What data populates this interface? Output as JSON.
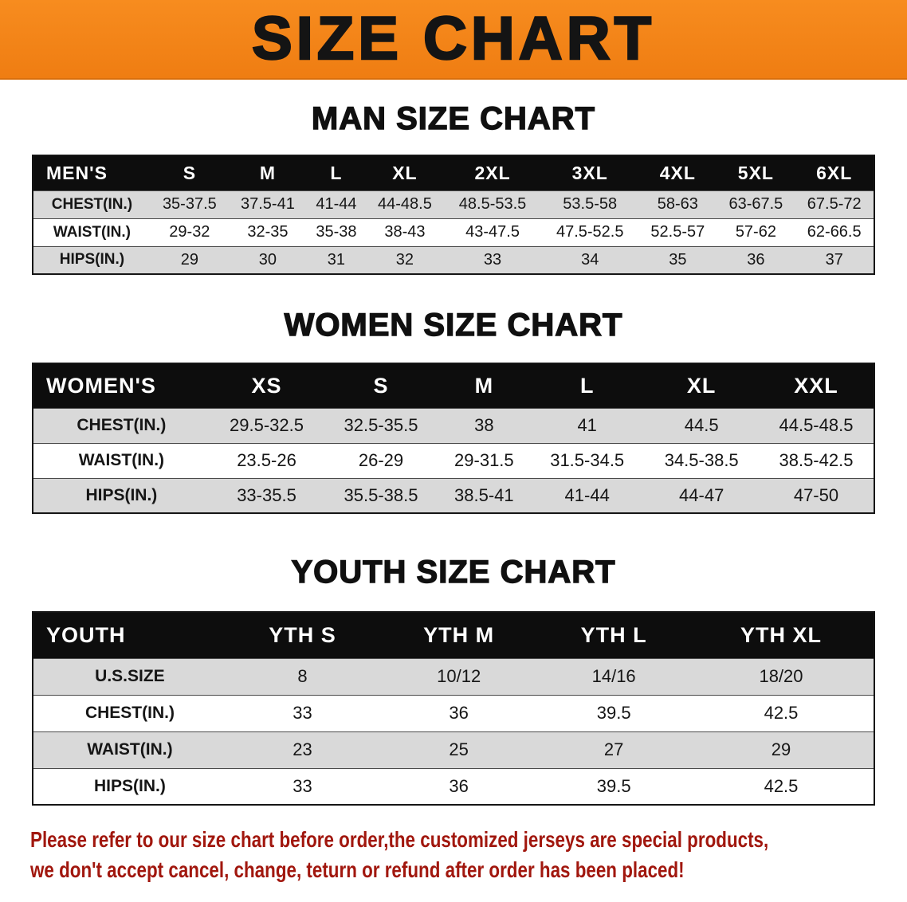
{
  "banner": {
    "title": "SIZE CHART",
    "bg_color": "#f6831e"
  },
  "sections": [
    {
      "id": "men",
      "heading": "MAN SIZE CHART",
      "table": {
        "header": [
          "MEN'S",
          "S",
          "M",
          "L",
          "XL",
          "2XL",
          "3XL",
          "4XL",
          "5XL",
          "6XL"
        ],
        "rows": [
          {
            "label": "CHEST(IN.)",
            "values": [
              "35-37.5",
              "37.5-41",
              "41-44",
              "44-48.5",
              "48.5-53.5",
              "53.5-58",
              "58-63",
              "63-67.5",
              "67.5-72"
            ]
          },
          {
            "label": "WAIST(IN.)",
            "values": [
              "29-32",
              "32-35",
              "35-38",
              "38-43",
              "43-47.5",
              "47.5-52.5",
              "52.5-57",
              "57-62",
              "62-66.5"
            ]
          },
          {
            "label": "HIPS(IN.)",
            "values": [
              "29",
              "30",
              "31",
              "32",
              "33",
              "34",
              "35",
              "36",
              "37"
            ]
          }
        ]
      }
    },
    {
      "id": "women",
      "heading": "WOMEN SIZE CHART",
      "table": {
        "header": [
          "WOMEN'S",
          "XS",
          "S",
          "M",
          "L",
          "XL",
          "XXL"
        ],
        "rows": [
          {
            "label": "CHEST(IN.)",
            "values": [
              "29.5-32.5",
              "32.5-35.5",
              "38",
              "41",
              "44.5",
              "44.5-48.5"
            ]
          },
          {
            "label": "WAIST(IN.)",
            "values": [
              "23.5-26",
              "26-29",
              "29-31.5",
              "31.5-34.5",
              "34.5-38.5",
              "38.5-42.5"
            ]
          },
          {
            "label": "HIPS(IN.)",
            "values": [
              "33-35.5",
              "35.5-38.5",
              "38.5-41",
              "41-44",
              "44-47",
              "47-50"
            ]
          }
        ]
      }
    },
    {
      "id": "youth",
      "heading": "YOUTH SIZE CHART",
      "table": {
        "header": [
          "YOUTH",
          "YTH S",
          "YTH M",
          "YTH L",
          "YTH XL"
        ],
        "rows": [
          {
            "label": "U.S.SIZE",
            "values": [
              "8",
              "10/12",
              "14/16",
              "18/20"
            ]
          },
          {
            "label": "CHEST(IN.)",
            "values": [
              "33",
              "36",
              "39.5",
              "42.5"
            ]
          },
          {
            "label": "WAIST(IN.)",
            "values": [
              "23",
              "25",
              "27",
              "29"
            ]
          },
          {
            "label": "HIPS(IN.)",
            "values": [
              "33",
              "36",
              "39.5",
              "42.5"
            ]
          }
        ]
      }
    }
  ],
  "disclaimer": {
    "color": "#a1170e",
    "line1": "Please refer to our size chart before order,the customized jerseys are special products,",
    "line2": "we don't accept cancel, change, teturn or refund after order has been placed!"
  }
}
